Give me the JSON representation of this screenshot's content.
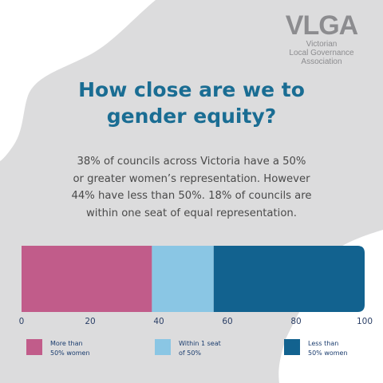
{
  "logo": {
    "mark": "VLGA",
    "lines": [
      "Victorian",
      "Local Governance",
      "Association"
    ]
  },
  "title": {
    "line1": "How close are we to",
    "line2": "gender equity?"
  },
  "body": {
    "line1": "38% of councils across Victoria have a 50%",
    "line2": "or greater women’s representation. However",
    "line3": "44% have less than 50%. 18% of councils are",
    "line4": "within one seat of equal representation."
  },
  "colors": {
    "more_than_50": "#c15c8a",
    "within_1_seat": "#8ac6e4",
    "less_than_50": "#12628f"
  },
  "chart_data": {
    "type": "bar",
    "orientation": "horizontal-stacked",
    "xlim": [
      0,
      100
    ],
    "ticks": [
      "0",
      "20",
      "40",
      "60",
      "80",
      "100"
    ],
    "series": [
      {
        "legend_lines": [
          "More than",
          "50% women"
        ],
        "value": 38,
        "color": "#c15c8a"
      },
      {
        "legend_lines": [
          "Within 1 seat",
          "of 50%"
        ],
        "value": 18,
        "color": "#8ac6e4"
      },
      {
        "legend_lines": [
          "Less than",
          "50% women"
        ],
        "value": 44,
        "color": "#12628f"
      }
    ]
  }
}
